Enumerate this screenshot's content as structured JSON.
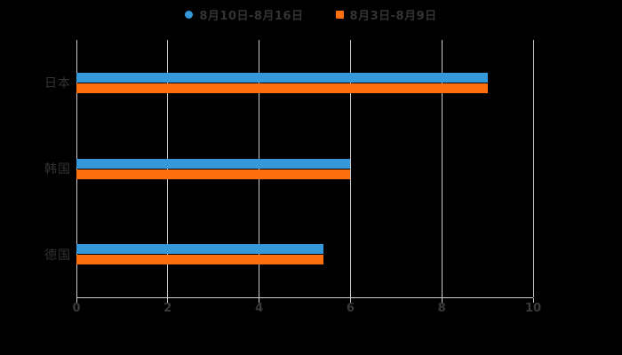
{
  "chart_data": {
    "type": "bar",
    "orientation": "horizontal",
    "title": "",
    "categories": [
      "日本",
      "韩国",
      "德国"
    ],
    "series": [
      {
        "name": "8月10日-8月16日",
        "color": "#3498db",
        "marker": "circle",
        "values": [
          9,
          6,
          5.4
        ]
      },
      {
        "name": "8月3日-8月9日",
        "color": "#fd6e0c",
        "marker": "square",
        "values": [
          9,
          6,
          5.4
        ]
      }
    ],
    "xlim": [
      0,
      10
    ],
    "xticks": [
      0,
      2,
      4,
      6,
      8,
      10
    ],
    "grid": true,
    "legend_position": "top",
    "colors": {
      "background": "#000000",
      "gridline": "#cccccc",
      "axis": "#cccccc",
      "legend_text": "#333333",
      "category_label_text": "#333333",
      "tick_label_text": "#3a3a3a"
    }
  }
}
